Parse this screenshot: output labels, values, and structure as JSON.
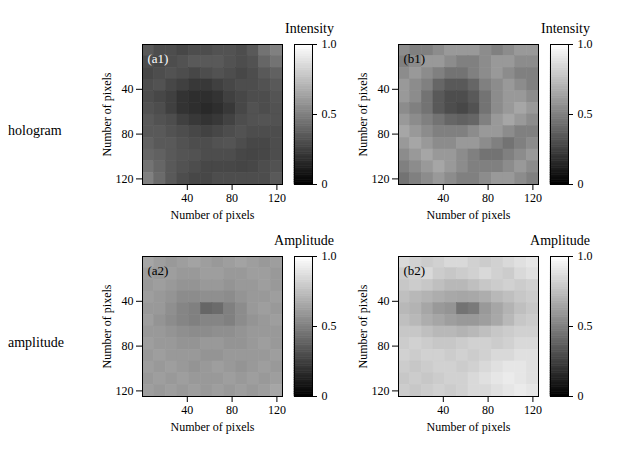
{
  "row_labels": [
    "hologram",
    "amplitude"
  ],
  "chart_data": [
    {
      "type": "heatmap",
      "panel": "(a1)",
      "colorbar_title": "Intensity",
      "xlabel": "Number of pixels",
      "ylabel": "Number of pixels",
      "xlim": [
        0,
        125
      ],
      "ylim": [
        125,
        0
      ],
      "xticks": [
        40,
        80,
        120
      ],
      "yticks": [
        40,
        80,
        120
      ],
      "colorbar_range": [
        0,
        1
      ],
      "colorbar_ticks": [
        0,
        0.5,
        {
          "value": 1,
          "label": "1.0"
        }
      ],
      "cells": [
        [
          0.35,
          0.3,
          0.3,
          0.28,
          0.3,
          0.3,
          0.32,
          0.32,
          0.3,
          0.35,
          0.45,
          0.5
        ],
        [
          0.3,
          0.28,
          0.3,
          0.32,
          0.35,
          0.35,
          0.35,
          0.32,
          0.3,
          0.32,
          0.4,
          0.45
        ],
        [
          0.28,
          0.3,
          0.32,
          0.3,
          0.28,
          0.3,
          0.32,
          0.3,
          0.28,
          0.3,
          0.35,
          0.38
        ],
        [
          0.3,
          0.32,
          0.28,
          0.25,
          0.22,
          0.22,
          0.25,
          0.28,
          0.3,
          0.3,
          0.32,
          0.35
        ],
        [
          0.3,
          0.28,
          0.25,
          0.2,
          0.18,
          0.18,
          0.2,
          0.25,
          0.28,
          0.3,
          0.3,
          0.33
        ],
        [
          0.32,
          0.3,
          0.25,
          0.2,
          0.18,
          0.16,
          0.18,
          0.22,
          0.28,
          0.32,
          0.3,
          0.32
        ],
        [
          0.35,
          0.32,
          0.3,
          0.25,
          0.22,
          0.2,
          0.22,
          0.26,
          0.3,
          0.32,
          0.33,
          0.32
        ],
        [
          0.35,
          0.35,
          0.32,
          0.3,
          0.28,
          0.26,
          0.28,
          0.3,
          0.32,
          0.3,
          0.3,
          0.3
        ],
        [
          0.38,
          0.35,
          0.35,
          0.32,
          0.3,
          0.3,
          0.32,
          0.33,
          0.3,
          0.28,
          0.28,
          0.3
        ],
        [
          0.4,
          0.38,
          0.35,
          0.33,
          0.32,
          0.3,
          0.3,
          0.3,
          0.28,
          0.27,
          0.28,
          0.3
        ],
        [
          0.45,
          0.4,
          0.35,
          0.32,
          0.3,
          0.28,
          0.28,
          0.28,
          0.27,
          0.28,
          0.3,
          0.32
        ],
        [
          0.5,
          0.42,
          0.35,
          0.3,
          0.28,
          0.28,
          0.3,
          0.3,
          0.3,
          0.3,
          0.3,
          0.35
        ]
      ]
    },
    {
      "type": "heatmap",
      "panel": "(b1)",
      "colorbar_title": "Intensity",
      "xlabel": "Number of pixels",
      "ylabel": "Number of pixels",
      "xlim": [
        0,
        125
      ],
      "ylim": [
        125,
        0
      ],
      "xticks": [
        40,
        80,
        120
      ],
      "yticks": [
        40,
        80,
        120
      ],
      "colorbar_range": [
        0,
        1
      ],
      "colorbar_ticks": [
        0,
        0.5,
        {
          "value": 1,
          "label": "1.0"
        }
      ],
      "cells": [
        [
          0.55,
          0.5,
          0.5,
          0.55,
          0.6,
          0.6,
          0.6,
          0.55,
          0.5,
          0.55,
          0.6,
          0.6
        ],
        [
          0.5,
          0.55,
          0.6,
          0.6,
          0.55,
          0.5,
          0.5,
          0.55,
          0.6,
          0.6,
          0.55,
          0.55
        ],
        [
          0.55,
          0.6,
          0.55,
          0.5,
          0.45,
          0.45,
          0.5,
          0.55,
          0.6,
          0.55,
          0.5,
          0.5
        ],
        [
          0.6,
          0.55,
          0.5,
          0.4,
          0.35,
          0.35,
          0.4,
          0.5,
          0.55,
          0.6,
          0.55,
          0.5
        ],
        [
          0.6,
          0.55,
          0.45,
          0.35,
          0.3,
          0.3,
          0.35,
          0.45,
          0.55,
          0.6,
          0.6,
          0.55
        ],
        [
          0.55,
          0.5,
          0.45,
          0.35,
          0.3,
          0.28,
          0.32,
          0.45,
          0.55,
          0.6,
          0.65,
          0.6
        ],
        [
          0.6,
          0.55,
          0.5,
          0.45,
          0.4,
          0.38,
          0.4,
          0.5,
          0.6,
          0.65,
          0.6,
          0.55
        ],
        [
          0.65,
          0.6,
          0.55,
          0.5,
          0.5,
          0.5,
          0.55,
          0.6,
          0.6,
          0.55,
          0.5,
          0.5
        ],
        [
          0.6,
          0.65,
          0.6,
          0.55,
          0.55,
          0.6,
          0.6,
          0.55,
          0.5,
          0.45,
          0.5,
          0.55
        ],
        [
          0.55,
          0.6,
          0.65,
          0.6,
          0.6,
          0.55,
          0.5,
          0.45,
          0.45,
          0.5,
          0.55,
          0.6
        ],
        [
          0.5,
          0.55,
          0.6,
          0.65,
          0.6,
          0.55,
          0.5,
          0.5,
          0.5,
          0.55,
          0.6,
          0.55
        ],
        [
          0.45,
          0.5,
          0.55,
          0.6,
          0.55,
          0.5,
          0.5,
          0.55,
          0.6,
          0.6,
          0.55,
          0.5
        ]
      ]
    },
    {
      "type": "heatmap",
      "panel": "(a2)",
      "colorbar_title": "Amplitude",
      "xlabel": "Number of pixels",
      "ylabel": "Number of pixels",
      "xlim": [
        0,
        125
      ],
      "ylim": [
        125,
        0
      ],
      "xticks": [
        40,
        80,
        120
      ],
      "yticks": [
        40,
        80,
        120
      ],
      "colorbar_range": [
        0,
        1
      ],
      "colorbar_ticks": [
        0,
        0.5,
        {
          "value": 1,
          "label": "1.0"
        }
      ],
      "cells": [
        [
          0.65,
          0.62,
          0.6,
          0.62,
          0.64,
          0.62,
          0.6,
          0.62,
          0.64,
          0.62,
          0.6,
          0.62
        ],
        [
          0.62,
          0.6,
          0.62,
          0.6,
          0.6,
          0.62,
          0.62,
          0.6,
          0.6,
          0.62,
          0.62,
          0.6
        ],
        [
          0.6,
          0.62,
          0.6,
          0.58,
          0.58,
          0.6,
          0.6,
          0.58,
          0.6,
          0.6,
          0.62,
          0.6
        ],
        [
          0.62,
          0.6,
          0.58,
          0.55,
          0.55,
          0.56,
          0.56,
          0.55,
          0.58,
          0.6,
          0.6,
          0.62
        ],
        [
          0.6,
          0.6,
          0.56,
          0.52,
          0.5,
          0.4,
          0.42,
          0.5,
          0.55,
          0.6,
          0.62,
          0.6
        ],
        [
          0.62,
          0.58,
          0.55,
          0.52,
          0.5,
          0.52,
          0.52,
          0.5,
          0.55,
          0.58,
          0.6,
          0.62
        ],
        [
          0.6,
          0.6,
          0.58,
          0.56,
          0.55,
          0.55,
          0.56,
          0.56,
          0.58,
          0.6,
          0.6,
          0.6
        ],
        [
          0.62,
          0.6,
          0.6,
          0.58,
          0.58,
          0.6,
          0.6,
          0.58,
          0.58,
          0.6,
          0.62,
          0.6
        ],
        [
          0.6,
          0.62,
          0.6,
          0.6,
          0.6,
          0.58,
          0.58,
          0.6,
          0.6,
          0.6,
          0.6,
          0.62
        ],
        [
          0.62,
          0.6,
          0.62,
          0.6,
          0.58,
          0.6,
          0.62,
          0.6,
          0.58,
          0.6,
          0.62,
          0.6
        ],
        [
          0.6,
          0.62,
          0.6,
          0.62,
          0.6,
          0.6,
          0.6,
          0.62,
          0.6,
          0.62,
          0.6,
          0.62
        ],
        [
          0.62,
          0.6,
          0.62,
          0.6,
          0.62,
          0.6,
          0.62,
          0.6,
          0.62,
          0.6,
          0.62,
          0.65
        ]
      ]
    },
    {
      "type": "heatmap",
      "panel": "(b2)",
      "colorbar_title": "Amplitude",
      "xlabel": "Number of pixels",
      "ylabel": "Number of pixels",
      "xlim": [
        0,
        125
      ],
      "ylim": [
        125,
        0
      ],
      "xticks": [
        40,
        80,
        120
      ],
      "yticks": [
        40,
        80,
        120
      ],
      "colorbar_range": [
        0,
        1
      ],
      "colorbar_ticks": [
        0,
        0.5,
        {
          "value": 1,
          "label": "1.0"
        }
      ],
      "cells": [
        [
          0.85,
          0.82,
          0.8,
          0.82,
          0.85,
          0.85,
          0.82,
          0.8,
          0.82,
          0.85,
          0.88,
          0.9
        ],
        [
          0.8,
          0.82,
          0.85,
          0.8,
          0.78,
          0.8,
          0.82,
          0.85,
          0.82,
          0.8,
          0.85,
          0.88
        ],
        [
          0.78,
          0.8,
          0.78,
          0.75,
          0.72,
          0.72,
          0.75,
          0.78,
          0.8,
          0.82,
          0.8,
          0.82
        ],
        [
          0.75,
          0.72,
          0.7,
          0.68,
          0.66,
          0.65,
          0.66,
          0.68,
          0.72,
          0.75,
          0.78,
          0.8
        ],
        [
          0.72,
          0.7,
          0.65,
          0.6,
          0.58,
          0.45,
          0.48,
          0.6,
          0.65,
          0.7,
          0.75,
          0.78
        ],
        [
          0.75,
          0.72,
          0.68,
          0.65,
          0.62,
          0.6,
          0.6,
          0.62,
          0.66,
          0.72,
          0.78,
          0.8
        ],
        [
          0.78,
          0.78,
          0.75,
          0.72,
          0.72,
          0.7,
          0.72,
          0.75,
          0.78,
          0.8,
          0.82,
          0.82
        ],
        [
          0.8,
          0.82,
          0.8,
          0.78,
          0.78,
          0.8,
          0.82,
          0.82,
          0.8,
          0.82,
          0.85,
          0.85
        ],
        [
          0.82,
          0.8,
          0.82,
          0.82,
          0.8,
          0.82,
          0.8,
          0.82,
          0.85,
          0.85,
          0.88,
          0.88
        ],
        [
          0.8,
          0.78,
          0.8,
          0.82,
          0.82,
          0.8,
          0.82,
          0.85,
          0.88,
          0.9,
          0.9,
          0.88
        ],
        [
          0.78,
          0.8,
          0.78,
          0.8,
          0.82,
          0.82,
          0.85,
          0.88,
          0.9,
          0.92,
          0.9,
          0.88
        ],
        [
          0.8,
          0.78,
          0.8,
          0.82,
          0.8,
          0.82,
          0.85,
          0.85,
          0.88,
          0.9,
          0.92,
          0.9
        ]
      ]
    }
  ]
}
